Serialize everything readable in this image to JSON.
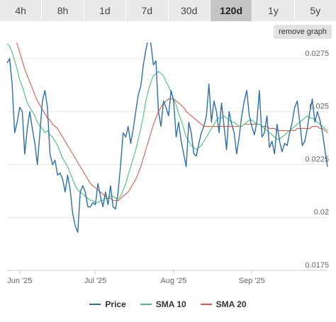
{
  "tabs": [
    {
      "label": "4h",
      "active": false
    },
    {
      "label": "8h",
      "active": false
    },
    {
      "label": "1d",
      "active": false
    },
    {
      "label": "7d",
      "active": false
    },
    {
      "label": "30d",
      "active": false
    },
    {
      "label": "120d",
      "active": true
    },
    {
      "label": "1y",
      "active": false
    },
    {
      "label": "5y",
      "active": false
    }
  ],
  "remove_graph_label": "remove graph",
  "colors": {
    "price": "#2a6faf",
    "sma10": "#46c479",
    "sma20": "#e8574a"
  },
  "chart_data": {
    "type": "line",
    "title": "",
    "xlabel": "",
    "ylabel": "",
    "x_start": "2025-05-27",
    "x_step_days": 1,
    "x_ticks": [
      {
        "label": "Jun '25",
        "date": "2025-06-01"
      },
      {
        "label": "Jul '25",
        "date": "2025-07-01"
      },
      {
        "label": "Aug '25",
        "date": "2025-08-01"
      },
      {
        "label": "Sep '25",
        "date": "2025-09-01"
      }
    ],
    "y_ticks": [
      "0.0275",
      "0.025",
      "0.0225",
      "0.02",
      "0.0175"
    ],
    "ylim": [
      0.0175,
      0.0282
    ],
    "legend_position": "bottom",
    "series": [
      {
        "name": "Price",
        "values": [
          0.0273,
          0.0275,
          0.0263,
          0.024,
          0.0245,
          0.0252,
          0.025,
          0.023,
          0.0242,
          0.025,
          0.0242,
          0.0235,
          0.0225,
          0.024,
          0.0255,
          0.026,
          0.0252,
          0.023,
          0.0225,
          0.0227,
          0.022,
          0.0221,
          0.0218,
          0.0212,
          0.022,
          0.0213,
          0.0202,
          0.0196,
          0.0193,
          0.0212,
          0.0215,
          0.0212,
          0.0205,
          0.0205,
          0.0207,
          0.0206,
          0.0216,
          0.021,
          0.0205,
          0.0212,
          0.0206,
          0.0215,
          0.0205,
          0.0204,
          0.0212,
          0.0225,
          0.024,
          0.0238,
          0.0243,
          0.0235,
          0.0242,
          0.025,
          0.0258,
          0.0262,
          0.0272,
          0.0279,
          0.0285,
          0.0282,
          0.0272,
          0.0274,
          0.025,
          0.0243,
          0.0255,
          0.0252,
          0.0248,
          0.026,
          0.0255,
          0.0238,
          0.0245,
          0.0236,
          0.023,
          0.0224,
          0.0245,
          0.024,
          0.023,
          0.0229,
          0.0235,
          0.024,
          0.0243,
          0.0248,
          0.0263,
          0.0245,
          0.0255,
          0.025,
          0.024,
          0.0254,
          0.0243,
          0.0232,
          0.025,
          0.0244,
          0.024,
          0.023,
          0.0238,
          0.0248,
          0.0255,
          0.026,
          0.0248,
          0.0243,
          0.0239,
          0.0245,
          0.026,
          0.0238,
          0.024,
          0.0248,
          0.0233,
          0.0236,
          0.023,
          0.0244,
          0.0236,
          0.0231,
          0.0235,
          0.0234,
          0.024,
          0.0245,
          0.0252,
          0.0255,
          0.0245,
          0.0234,
          0.0236,
          0.0242,
          0.025,
          0.0256,
          0.0245,
          0.025,
          0.0246,
          0.024,
          0.0232,
          0.0224
        ]
      },
      {
        "name": "SMA 10",
        "values": [
          0.0282,
          0.0281,
          0.0278,
          0.0274,
          0.027,
          0.0265,
          0.0262,
          0.0258,
          0.0254,
          0.0252,
          0.025,
          0.0248,
          0.0245,
          0.0243,
          0.0242,
          0.024,
          0.0241,
          0.0239,
          0.0238,
          0.0236,
          0.0234,
          0.0231,
          0.0228,
          0.0226,
          0.0224,
          0.0221,
          0.0218,
          0.0215,
          0.0213,
          0.0212,
          0.0211,
          0.021,
          0.0209,
          0.0208,
          0.0208,
          0.0207,
          0.0207,
          0.0208,
          0.0208,
          0.0209,
          0.0209,
          0.021,
          0.021,
          0.0209,
          0.0209,
          0.021,
          0.0213,
          0.0216,
          0.022,
          0.0224,
          0.0228,
          0.0232,
          0.0237,
          0.0242,
          0.0248,
          0.0255,
          0.026,
          0.0264,
          0.0267,
          0.0268,
          0.0269,
          0.0268,
          0.0267,
          0.0264,
          0.0262,
          0.0259,
          0.0256,
          0.0253,
          0.0249,
          0.0246,
          0.0242,
          0.0238,
          0.0236,
          0.0234,
          0.0233,
          0.0232,
          0.0233,
          0.0234,
          0.0236,
          0.0238,
          0.024,
          0.0242,
          0.0244,
          0.0246,
          0.0247,
          0.0247,
          0.0248,
          0.0247,
          0.0246,
          0.0245,
          0.0245,
          0.0244,
          0.0243,
          0.0243,
          0.0244,
          0.0245,
          0.0246,
          0.0246,
          0.0245,
          0.0244,
          0.0244,
          0.0243,
          0.0242,
          0.0241,
          0.024,
          0.0239,
          0.0238,
          0.0237,
          0.0237,
          0.0238,
          0.0239,
          0.024,
          0.0241,
          0.0242,
          0.0243,
          0.0244,
          0.0245,
          0.0246,
          0.0247,
          0.0248,
          0.0247,
          0.0247,
          0.0246,
          0.0245,
          0.0244,
          0.0243,
          0.0242,
          0.0241
        ]
      },
      {
        "name": "SMA 20",
        "values": [
          0.0287,
          0.0289,
          0.0288,
          0.0285,
          0.0282,
          0.0278,
          0.0274,
          0.027,
          0.0267,
          0.0264,
          0.0261,
          0.0258,
          0.0255,
          0.0253,
          0.0251,
          0.0249,
          0.0247,
          0.0246,
          0.0244,
          0.0243,
          0.0242,
          0.024,
          0.0238,
          0.0236,
          0.0234,
          0.0232,
          0.023,
          0.0228,
          0.0226,
          0.0224,
          0.0222,
          0.022,
          0.0218,
          0.0216,
          0.0215,
          0.0214,
          0.0213,
          0.0212,
          0.0211,
          0.021,
          0.0209,
          0.0209,
          0.0208,
          0.0208,
          0.0208,
          0.0209,
          0.021,
          0.0211,
          0.0212,
          0.0214,
          0.0216,
          0.0218,
          0.0221,
          0.0224,
          0.0228,
          0.0232,
          0.0236,
          0.024,
          0.0244,
          0.0247,
          0.025,
          0.0252,
          0.0254,
          0.0255,
          0.0256,
          0.0256,
          0.0256,
          0.0255,
          0.0254,
          0.0253,
          0.0252,
          0.025,
          0.0249,
          0.0248,
          0.0247,
          0.0246,
          0.0245,
          0.0244,
          0.0243,
          0.0243,
          0.0243,
          0.0243,
          0.0243,
          0.0243,
          0.0243,
          0.0243,
          0.0243,
          0.0243,
          0.0243,
          0.0243,
          0.0243,
          0.0243,
          0.0243,
          0.0243,
          0.0244,
          0.0244,
          0.0244,
          0.0244,
          0.0244,
          0.0244,
          0.0244,
          0.0243,
          0.0243,
          0.0243,
          0.0242,
          0.0242,
          0.0242,
          0.0241,
          0.0241,
          0.0241,
          0.0241,
          0.0241,
          0.0241,
          0.0241,
          0.0241,
          0.0242,
          0.0242,
          0.0242,
          0.0242,
          0.0242,
          0.0242,
          0.0243,
          0.0243,
          0.0243,
          0.0242,
          0.0242,
          0.0241,
          0.024
        ]
      }
    ]
  },
  "legend": [
    {
      "label": "Price",
      "color_key": "price"
    },
    {
      "label": "SMA 10",
      "color_key": "sma10"
    },
    {
      "label": "SMA 20",
      "color_key": "sma20"
    }
  ]
}
